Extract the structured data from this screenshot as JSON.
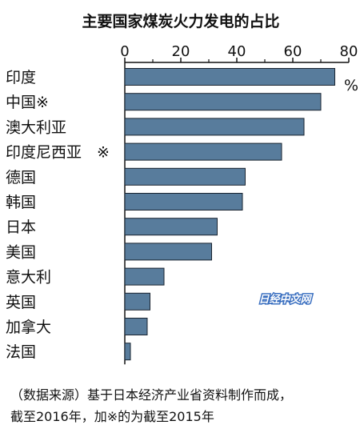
{
  "chart_data": {
    "type": "bar",
    "orientation": "horizontal",
    "title": "主要国家煤炭火力发电的占比",
    "unit": "%",
    "categories": [
      "印度",
      "中国※",
      "澳大利亚",
      "印度尼西亚　※",
      "德国",
      "韩国",
      "日本",
      "美国",
      "意大利",
      "英国",
      "加拿大",
      "法国"
    ],
    "values": [
      75,
      70,
      64,
      56,
      43,
      42,
      33,
      31,
      14,
      9,
      8,
      2
    ],
    "xlim": [
      0,
      80
    ],
    "xticks": [
      "0",
      "20",
      "40",
      "60",
      "80"
    ],
    "grid": false,
    "bar_color": "#587c9c",
    "bar_edge_color": "#1a2430"
  },
  "watermark": "日经中文网",
  "source_note": {
    "line1": "（数据来源）基于日本经济产业省资料制作而成，",
    "line2": "截至2016年，加※的为截至2015年"
  }
}
